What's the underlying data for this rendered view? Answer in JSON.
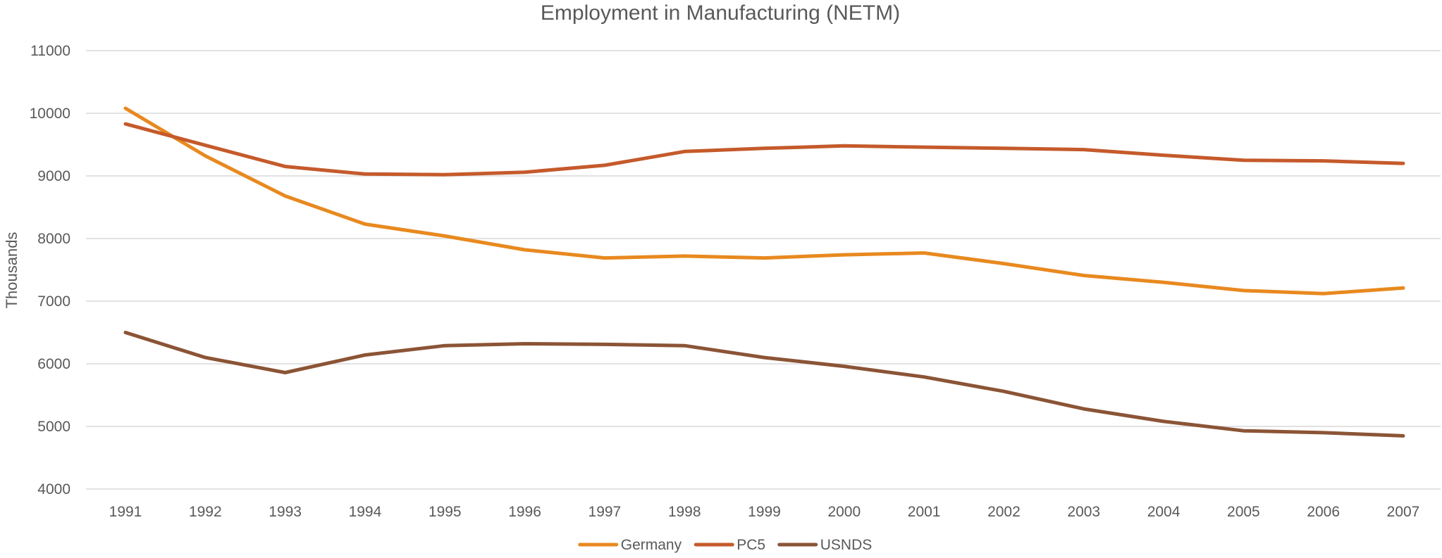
{
  "chart_data": {
    "type": "line",
    "title": "Employment in Manufacturing (NETM)",
    "xlabel": "",
    "ylabel": "Thousands",
    "categories": [
      "1991",
      "1992",
      "1993",
      "1994",
      "1995",
      "1996",
      "1997",
      "1998",
      "1999",
      "2000",
      "2001",
      "2002",
      "2003",
      "2004",
      "2005",
      "2006",
      "2007"
    ],
    "ylim": [
      4000,
      11000
    ],
    "yticks": [
      4000,
      5000,
      6000,
      7000,
      8000,
      9000,
      10000,
      11000
    ],
    "grid": true,
    "legend_position": "bottom",
    "series": [
      {
        "name": "Germany",
        "color": "#e8891f",
        "values": [
          10080,
          9320,
          8680,
          8230,
          8040,
          7820,
          7690,
          7720,
          7690,
          7740,
          7770,
          7600,
          7410,
          7300,
          7170,
          7120,
          7210
        ]
      },
      {
        "name": "PC5",
        "color": "#c55a2b",
        "values": [
          9830,
          9490,
          9150,
          9030,
          9020,
          9060,
          9170,
          9390,
          9440,
          9480,
          9460,
          9440,
          9420,
          9330,
          9250,
          9240,
          9200
        ]
      },
      {
        "name": "USNDS",
        "color": "#8b5436",
        "values": [
          6500,
          6100,
          5860,
          6140,
          6290,
          6320,
          6310,
          6290,
          6100,
          5960,
          5790,
          5560,
          5280,
          5080,
          4930,
          4900,
          4850
        ]
      }
    ]
  }
}
